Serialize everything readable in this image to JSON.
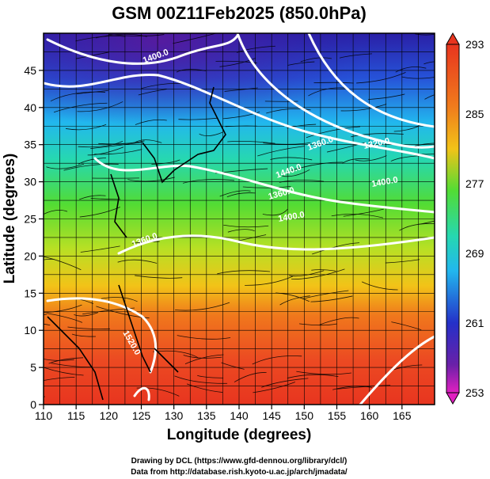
{
  "title": "GSM 00Z11Feb2025 (850.0hPa)",
  "xlabel": "Longitude (degrees)",
  "ylabel": "Latitude  (degrees)",
  "x_ticks": [
    "110",
    "115",
    "120",
    "125",
    "130",
    "135",
    "140",
    "145",
    "150",
    "155",
    "160",
    "165"
  ],
  "y_ticks": [
    "0",
    "5",
    "10",
    "15",
    "20",
    "25",
    "30",
    "35",
    "40",
    "45"
  ],
  "colorbar_ticks": [
    "253",
    "261",
    "269",
    "277",
    "285",
    "293"
  ],
  "credits": {
    "line1": "Drawing by DCL (https://www.gfd-dennou.org/library/dcl/)",
    "line2": "Data from http://database.rish.kyoto-u.ac.jp/arch/jmadata/"
  },
  "contour_labels": [
    "1400.0",
    "1320.0",
    "1360.0",
    "1400.0",
    "1440.0",
    "1360.0",
    "1400.0",
    "1360.0",
    "1520.0"
  ],
  "colors": {
    "cold": "#1a0a8c",
    "cool": "#19b8f0",
    "mid": "#3dd63d",
    "warm": "#f0a21a",
    "hot": "#e83322",
    "contour": "#ffffff"
  }
}
